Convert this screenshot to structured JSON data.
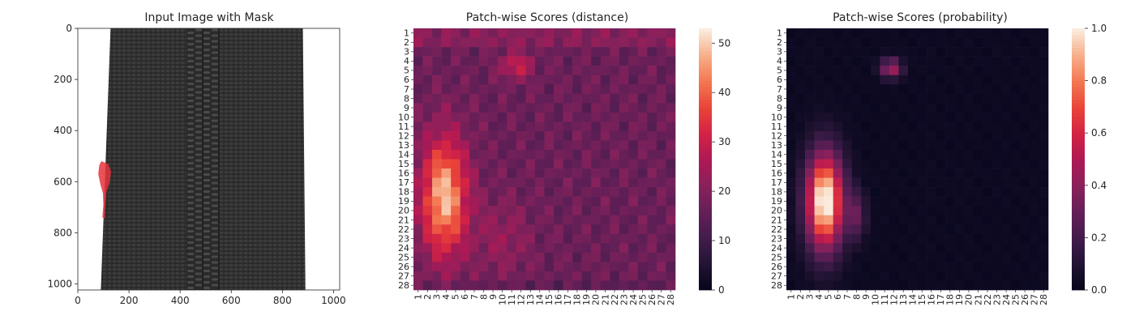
{
  "chart_data": [
    {
      "type": "image",
      "title": "Input Image with Mask",
      "xlim": [
        0,
        1024
      ],
      "ylim": [
        1024,
        0
      ],
      "xticks": [
        0,
        200,
        400,
        600,
        800,
        1000
      ],
      "yticks": [
        0,
        200,
        400,
        600,
        800,
        1000
      ],
      "image": {
        "fabric_x": [
          90,
          890
        ],
        "zipper_x": [
          425,
          555
        ],
        "mask_color": "#e8323c",
        "mask_path": [
          [
            92,
            520
          ],
          [
            118,
            530
          ],
          [
            130,
            560
          ],
          [
            125,
            600
          ],
          [
            112,
            640
          ],
          [
            108,
            690
          ],
          [
            105,
            745
          ],
          [
            96,
            740
          ],
          [
            100,
            690
          ],
          [
            98,
            645
          ],
          [
            88,
            610
          ],
          [
            80,
            570
          ],
          [
            84,
            535
          ]
        ]
      }
    },
    {
      "type": "heatmap",
      "title": "Patch-wise Scores (distance)",
      "labels": [
        "1",
        "2",
        "3",
        "4",
        "5",
        "6",
        "7",
        "8",
        "9",
        "10",
        "11",
        "12",
        "13",
        "14",
        "15",
        "16",
        "17",
        "18",
        "19",
        "20",
        "21",
        "22",
        "23",
        "24",
        "25",
        "26",
        "27",
        "28"
      ],
      "colorbar": {
        "min": 0,
        "max": 53,
        "ticks": [
          0,
          10,
          20,
          30,
          40,
          50
        ]
      },
      "colormap": "rocket"
    },
    {
      "type": "heatmap",
      "title": "Patch-wise Scores (probability)",
      "labels": [
        "1",
        "2",
        "3",
        "4",
        "5",
        "6",
        "7",
        "8",
        "9",
        "10",
        "11",
        "12",
        "13",
        "14",
        "15",
        "16",
        "17",
        "18",
        "19",
        "20",
        "21",
        "22",
        "23",
        "24",
        "25",
        "26",
        "27",
        "28"
      ],
      "colorbar": {
        "min": 0,
        "max": 1,
        "ticks": [
          "0.0",
          "0.2",
          "0.4",
          "0.6",
          "0.8",
          "1.0"
        ]
      },
      "colormap": "rocket"
    }
  ]
}
